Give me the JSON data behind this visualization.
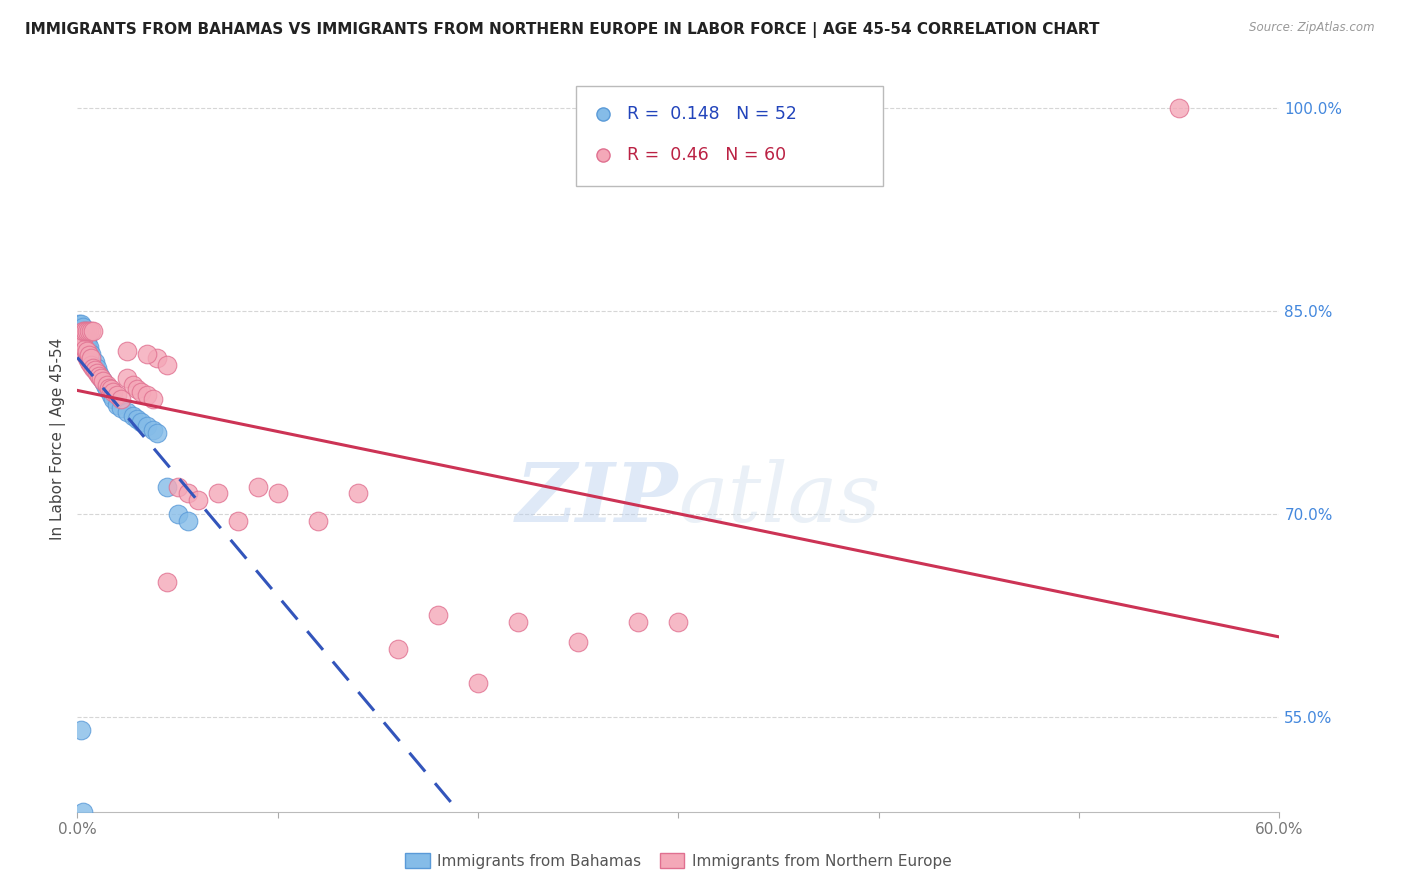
{
  "title": "IMMIGRANTS FROM BAHAMAS VS IMMIGRANTS FROM NORTHERN EUROPE IN LABOR FORCE | AGE 45-54 CORRELATION CHART",
  "source": "Source: ZipAtlas.com",
  "xlabel": "",
  "ylabel": "In Labor Force | Age 45-54",
  "xlim": [
    0.0,
    0.6
  ],
  "ylim": [
    0.48,
    1.03
  ],
  "xticks": [
    0.0,
    0.1,
    0.2,
    0.3,
    0.4,
    0.5,
    0.6
  ],
  "xticklabels": [
    "0.0%",
    "",
    "",
    "",
    "",
    "",
    "60.0%"
  ],
  "yticks_right": [
    0.55,
    0.7,
    0.85,
    1.0
  ],
  "ytick_right_labels": [
    "55.0%",
    "70.0%",
    "85.0%",
    "100.0%"
  ],
  "grid_color": "#cccccc",
  "background_color": "#ffffff",
  "blue_color": "#85bce8",
  "pink_color": "#f4a8b8",
  "blue_edge": "#5a9ad8",
  "pink_edge": "#e07090",
  "trend_blue_color": "#3355bb",
  "trend_pink_color": "#cc3355",
  "R_blue": 0.148,
  "N_blue": 52,
  "R_pink": 0.46,
  "N_pink": 60,
  "legend_label_blue": "Immigrants from Bahamas",
  "legend_label_pink": "Immigrants from Northern Europe",
  "watermark_zip": "ZIP",
  "watermark_atlas": "atlas",
  "blue_scatter_x": [
    0.001,
    0.001,
    0.001,
    0.002,
    0.002,
    0.002,
    0.002,
    0.003,
    0.003,
    0.003,
    0.003,
    0.003,
    0.004,
    0.004,
    0.004,
    0.004,
    0.004,
    0.005,
    0.005,
    0.005,
    0.005,
    0.006,
    0.006,
    0.006,
    0.007,
    0.007,
    0.008,
    0.009,
    0.009,
    0.01,
    0.01,
    0.011,
    0.012,
    0.013,
    0.014,
    0.015,
    0.017,
    0.018,
    0.02,
    0.022,
    0.025,
    0.028,
    0.03,
    0.032,
    0.035,
    0.038,
    0.04,
    0.045,
    0.05,
    0.055,
    0.002,
    0.003
  ],
  "blue_scatter_y": [
    0.835,
    0.838,
    0.84,
    0.83,
    0.833,
    0.836,
    0.84,
    0.828,
    0.83,
    0.832,
    0.835,
    0.838,
    0.825,
    0.828,
    0.83,
    0.832,
    0.835,
    0.82,
    0.823,
    0.826,
    0.83,
    0.818,
    0.82,
    0.823,
    0.815,
    0.818,
    0.81,
    0.808,
    0.812,
    0.805,
    0.808,
    0.803,
    0.8,
    0.798,
    0.795,
    0.792,
    0.788,
    0.785,
    0.78,
    0.778,
    0.775,
    0.772,
    0.77,
    0.768,
    0.765,
    0.762,
    0.76,
    0.72,
    0.7,
    0.695,
    0.54,
    0.48
  ],
  "pink_scatter_x": [
    0.001,
    0.002,
    0.002,
    0.003,
    0.003,
    0.003,
    0.004,
    0.004,
    0.005,
    0.005,
    0.006,
    0.006,
    0.007,
    0.007,
    0.008,
    0.009,
    0.01,
    0.011,
    0.012,
    0.013,
    0.015,
    0.016,
    0.017,
    0.018,
    0.02,
    0.022,
    0.025,
    0.028,
    0.03,
    0.032,
    0.035,
    0.038,
    0.04,
    0.045,
    0.05,
    0.055,
    0.06,
    0.07,
    0.08,
    0.09,
    0.1,
    0.12,
    0.14,
    0.16,
    0.18,
    0.2,
    0.22,
    0.25,
    0.28,
    0.3,
    0.003,
    0.004,
    0.005,
    0.006,
    0.007,
    0.008,
    0.025,
    0.035,
    0.045,
    0.55
  ],
  "pink_scatter_y": [
    0.833,
    0.825,
    0.83,
    0.82,
    0.825,
    0.83,
    0.818,
    0.822,
    0.815,
    0.82,
    0.812,
    0.817,
    0.81,
    0.815,
    0.808,
    0.806,
    0.804,
    0.802,
    0.8,
    0.798,
    0.795,
    0.793,
    0.792,
    0.79,
    0.788,
    0.785,
    0.8,
    0.795,
    0.792,
    0.79,
    0.788,
    0.785,
    0.815,
    0.81,
    0.72,
    0.715,
    0.71,
    0.715,
    0.695,
    0.72,
    0.715,
    0.695,
    0.715,
    0.6,
    0.625,
    0.575,
    0.62,
    0.605,
    0.62,
    0.62,
    0.835,
    0.835,
    0.835,
    0.835,
    0.835,
    0.835,
    0.82,
    0.818,
    0.65,
    1.0
  ]
}
